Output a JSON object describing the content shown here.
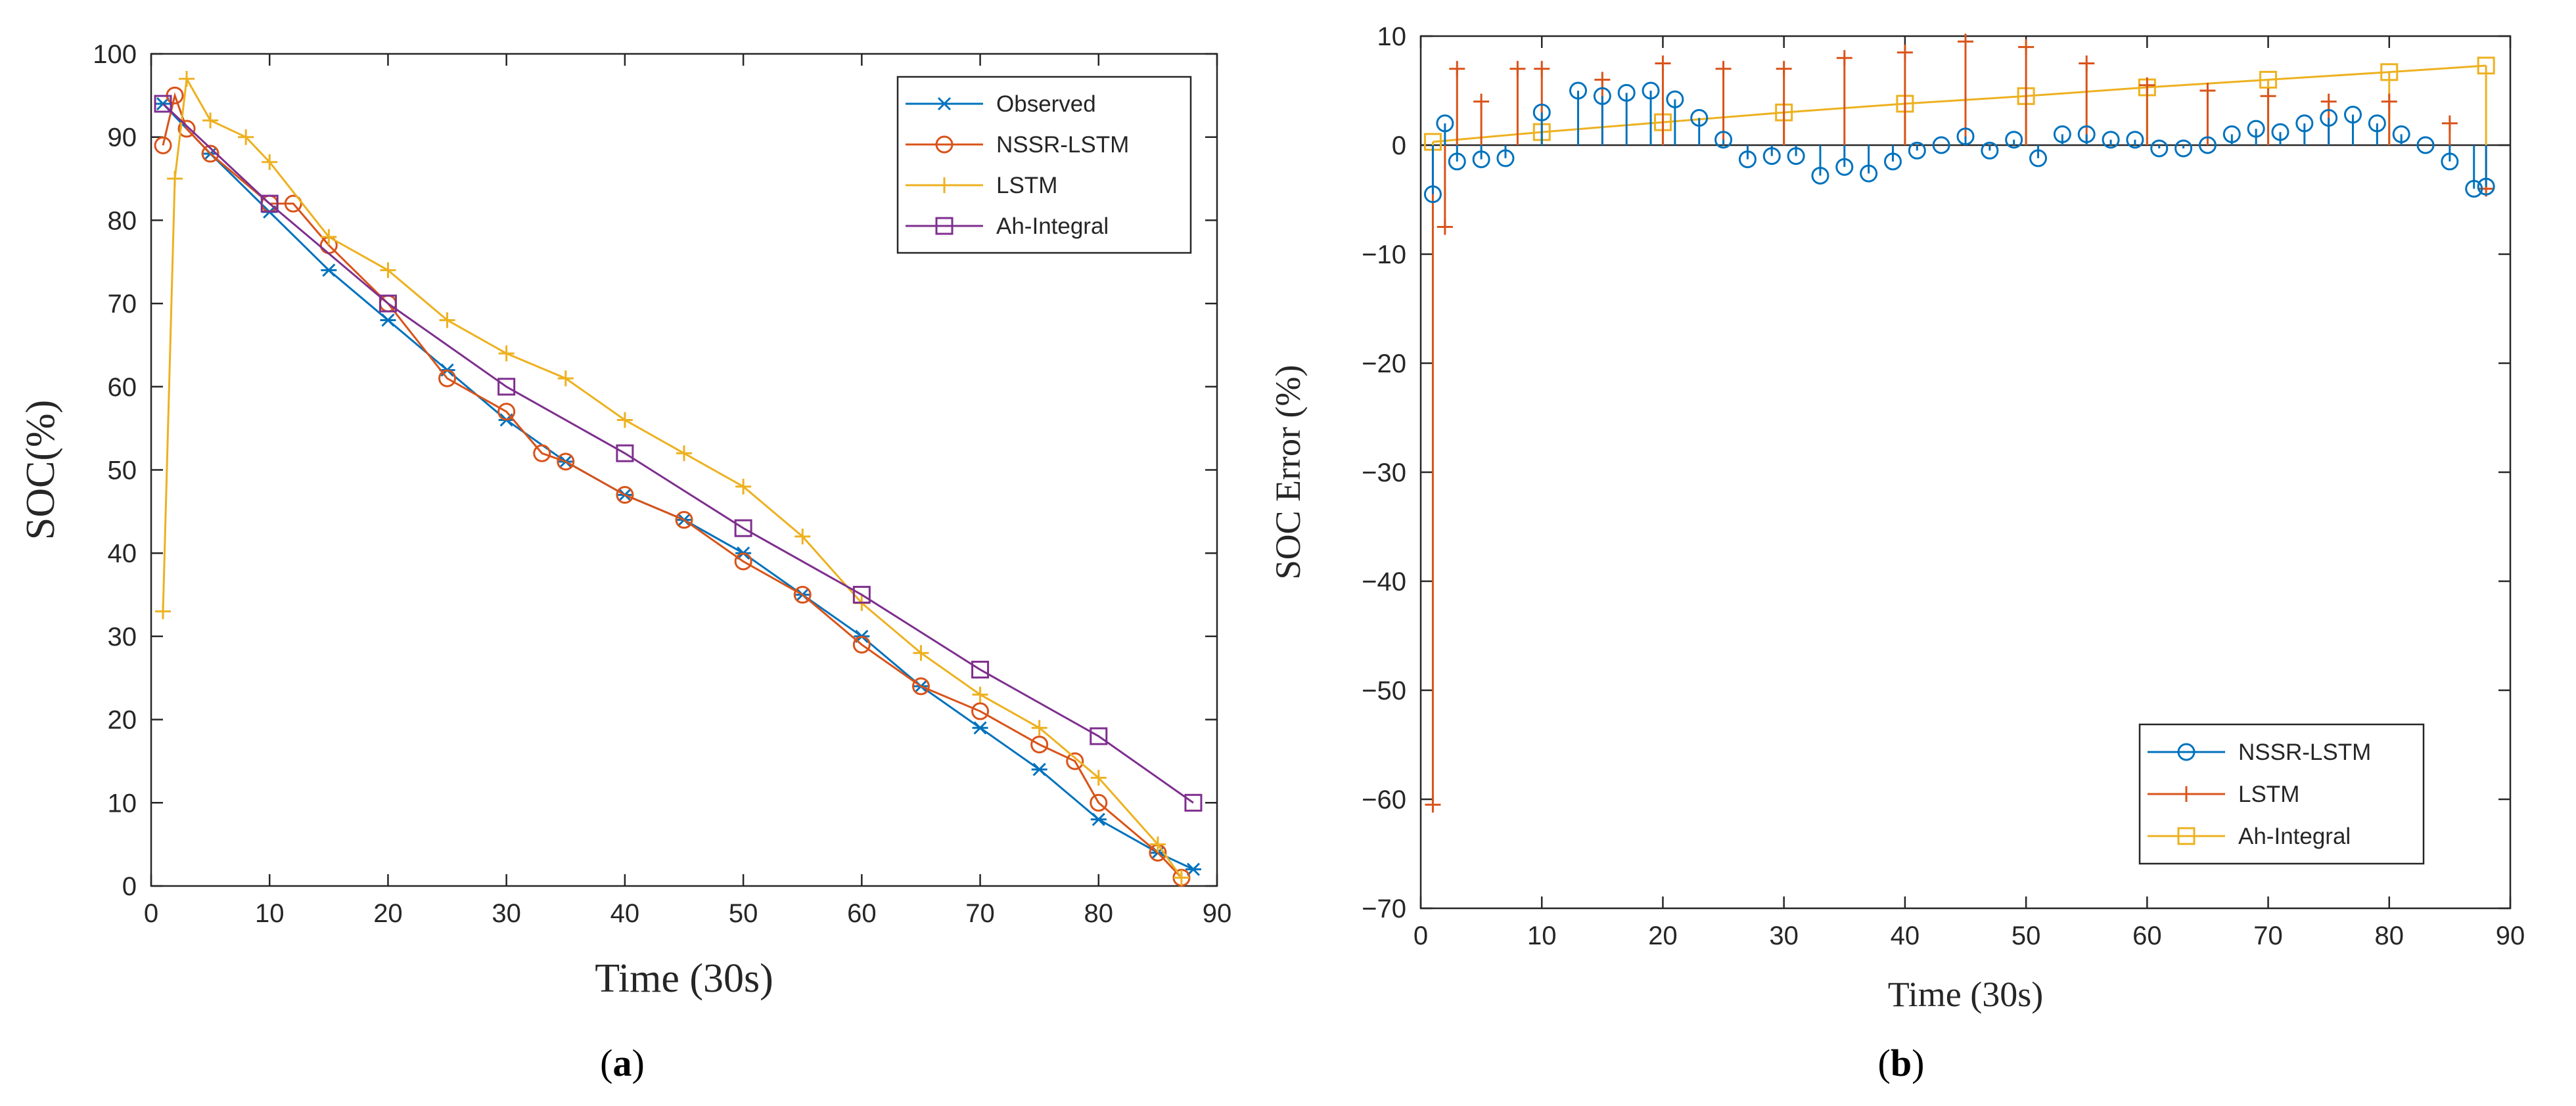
{
  "chart_data": [
    {
      "type": "line",
      "panel_label": "a",
      "title": "",
      "xlabel": "Time (30s)",
      "ylabel": "SOC(%)",
      "xlim": [
        0,
        90
      ],
      "ylim": [
        0,
        100
      ],
      "xticks": [
        "0",
        "10",
        "20",
        "30",
        "40",
        "50",
        "60",
        "70",
        "80",
        "90"
      ],
      "yticks": [
        "0",
        "10",
        "20",
        "30",
        "40",
        "50",
        "60",
        "70",
        "80",
        "90",
        "100"
      ],
      "grid": false,
      "legend_position": "top-right",
      "series": [
        {
          "name": "Observed",
          "color": "#0072BD",
          "marker": "asterisk",
          "x": [
            1,
            5,
            10,
            15,
            20,
            25,
            30,
            35,
            40,
            45,
            50,
            55,
            60,
            65,
            70,
            75,
            80,
            85,
            88
          ],
          "values": [
            94,
            88,
            81,
            74,
            68,
            62,
            56,
            51,
            47,
            44,
            40,
            35,
            30,
            24,
            19,
            14,
            8,
            4,
            2
          ]
        },
        {
          "name": "NSSR-LSTM",
          "color": "#D95319",
          "marker": "circle",
          "x": [
            1,
            2,
            3,
            5,
            10,
            12,
            15,
            20,
            25,
            30,
            33,
            35,
            40,
            45,
            50,
            55,
            60,
            65,
            70,
            75,
            78,
            80,
            85,
            87
          ],
          "values": [
            89,
            95,
            91,
            88,
            82,
            82,
            77,
            70,
            61,
            57,
            52,
            51,
            47,
            44,
            39,
            35,
            29,
            24,
            21,
            17,
            15,
            10,
            4,
            1
          ]
        },
        {
          "name": "LSTM",
          "color": "#EDB120",
          "marker": "plus",
          "x": [
            1,
            2,
            3,
            5,
            8,
            10,
            15,
            20,
            25,
            30,
            35,
            40,
            45,
            50,
            55,
            60,
            65,
            70,
            75,
            80,
            85,
            87
          ],
          "values": [
            33,
            85,
            97,
            92,
            90,
            87,
            78,
            74,
            68,
            64,
            61,
            56,
            52,
            48,
            42,
            34,
            28,
            23,
            19,
            13,
            5,
            1
          ]
        },
        {
          "name": "Ah-Integral",
          "color": "#7E2F8E",
          "marker": "square",
          "x": [
            1,
            10,
            20,
            30,
            40,
            50,
            60,
            70,
            80,
            88
          ],
          "values": [
            94,
            82,
            70,
            60,
            52,
            43,
            35,
            26,
            18,
            10
          ]
        }
      ]
    },
    {
      "type": "stem",
      "panel_label": "b",
      "title": "",
      "xlabel": "Time (30s)",
      "ylabel": "SOC Error (%)",
      "xlim": [
        0,
        90
      ],
      "ylim": [
        -70,
        10
      ],
      "xticks": [
        "0",
        "10",
        "20",
        "30",
        "40",
        "50",
        "60",
        "70",
        "80",
        "90"
      ],
      "yticks": [
        "−70",
        "−60",
        "−50",
        "−40",
        "−30",
        "−20",
        "−10",
        "0",
        "10"
      ],
      "grid": false,
      "legend_position": "bottom-right",
      "series": [
        {
          "name": "NSSR-LSTM",
          "color": "#0072BD",
          "marker": "circle",
          "x": [
            1,
            2,
            3,
            5,
            7,
            10,
            13,
            15,
            17,
            19,
            21,
            23,
            25,
            27,
            29,
            31,
            33,
            35,
            37,
            39,
            41,
            43,
            45,
            47,
            49,
            51,
            53,
            55,
            57,
            59,
            61,
            63,
            65,
            67,
            69,
            71,
            73,
            75,
            77,
            79,
            81,
            83,
            85,
            87,
            88
          ],
          "values": [
            -4.5,
            2,
            -1.5,
            -1.3,
            -1.2,
            3,
            5,
            4.5,
            4.8,
            5,
            4.2,
            2.5,
            0.5,
            -1.3,
            -1,
            -1,
            -2.8,
            -2,
            -2.6,
            -1.5,
            -0.5,
            0,
            0.8,
            -0.5,
            0.5,
            -1.2,
            1,
            1,
            0.5,
            0.5,
            -0.3,
            -0.3,
            0,
            1,
            1.5,
            1.2,
            2,
            2.5,
            2.8,
            2,
            1,
            0,
            -1.5,
            -4,
            -3.8
          ]
        },
        {
          "name": "LSTM",
          "color": "#D95319",
          "marker": "plus",
          "x": [
            1,
            2,
            3,
            5,
            8,
            10,
            15,
            20,
            25,
            30,
            35,
            40,
            45,
            50,
            55,
            60,
            65,
            70,
            75,
            80,
            85,
            88
          ],
          "values": [
            -60.5,
            -7.5,
            7,
            4,
            7,
            7,
            6,
            7.5,
            7,
            7,
            8,
            8.5,
            9.5,
            9,
            7.5,
            5.5,
            5,
            4.5,
            4,
            4,
            2,
            -4
          ]
        },
        {
          "name": "Ah-Integral",
          "color": "#EDB120",
          "marker": "square",
          "x": [
            1,
            10,
            20,
            30,
            40,
            50,
            60,
            70,
            80,
            88
          ],
          "values": [
            0.3,
            1.2,
            2.1,
            3.0,
            3.8,
            4.5,
            5.3,
            6.0,
            6.7,
            7.3
          ]
        }
      ]
    }
  ],
  "captions": {
    "a": "(a)",
    "b": "(b)"
  }
}
